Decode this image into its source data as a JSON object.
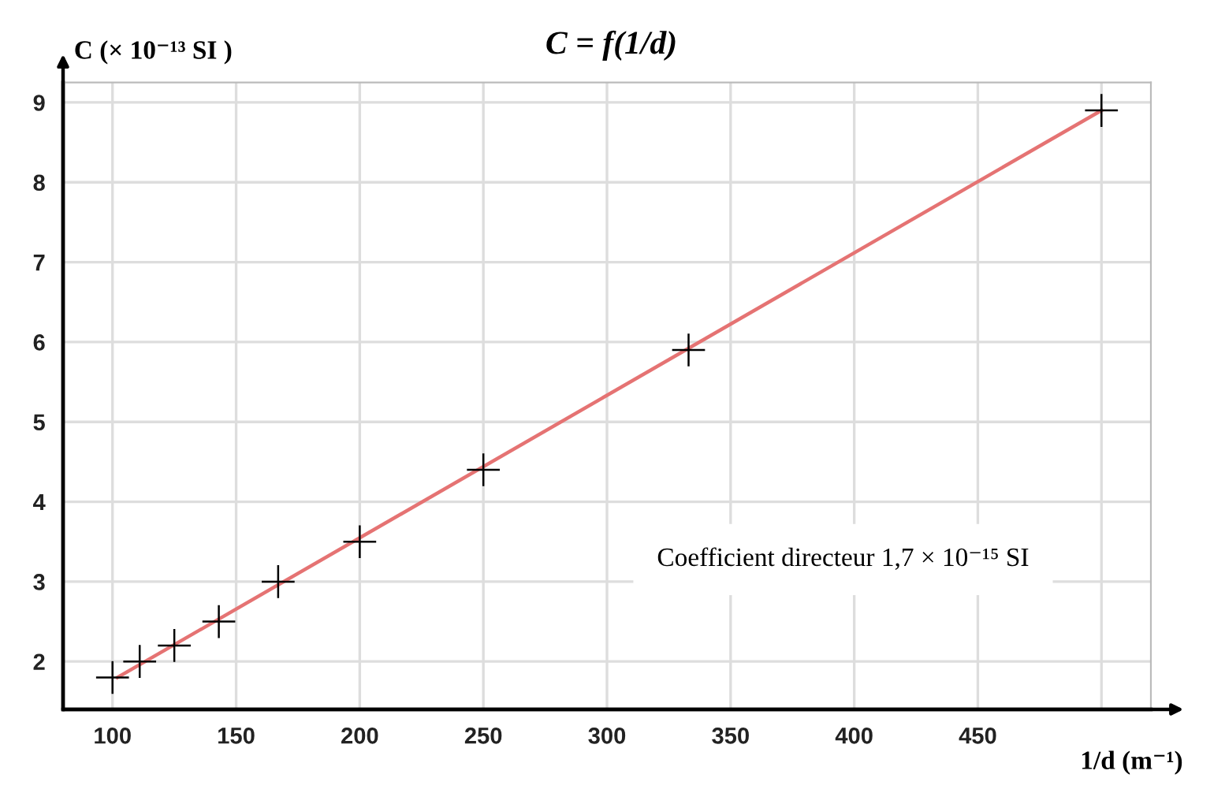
{
  "chart_data": {
    "type": "scatter",
    "title": "C = f(1/d)",
    "xlabel": "1/d (m⁻¹)",
    "ylabel": "C (× 10⁻¹³ SI )",
    "annotations": [
      "Coefficient directeur 1,7 × 10⁻¹⁵ SI"
    ],
    "series": [
      {
        "color": "#000000",
        "marker": "cross",
        "x": [
          100,
          111,
          125,
          143,
          167,
          200,
          250,
          333,
          500
        ],
        "values": [
          1.8,
          2.0,
          2.2,
          2.5,
          3.0,
          3.5,
          4.4,
          5.9,
          8.9
        ]
      },
      {
        "type": "line",
        "color": "#e57373",
        "line_style": "solid",
        "x": [
          102,
          500
        ],
        "values": [
          1.8,
          8.9
        ]
      }
    ],
    "xlim": [
      80,
      520
    ],
    "ylim": [
      1.4,
      9.25
    ],
    "xticks": [
      100,
      150,
      200,
      250,
      300,
      350,
      400,
      450,
      {
        "value": 500,
        "label": null
      }
    ],
    "yticks": [
      2,
      3,
      4,
      5,
      6,
      7,
      8,
      9
    ],
    "grid": true
  }
}
